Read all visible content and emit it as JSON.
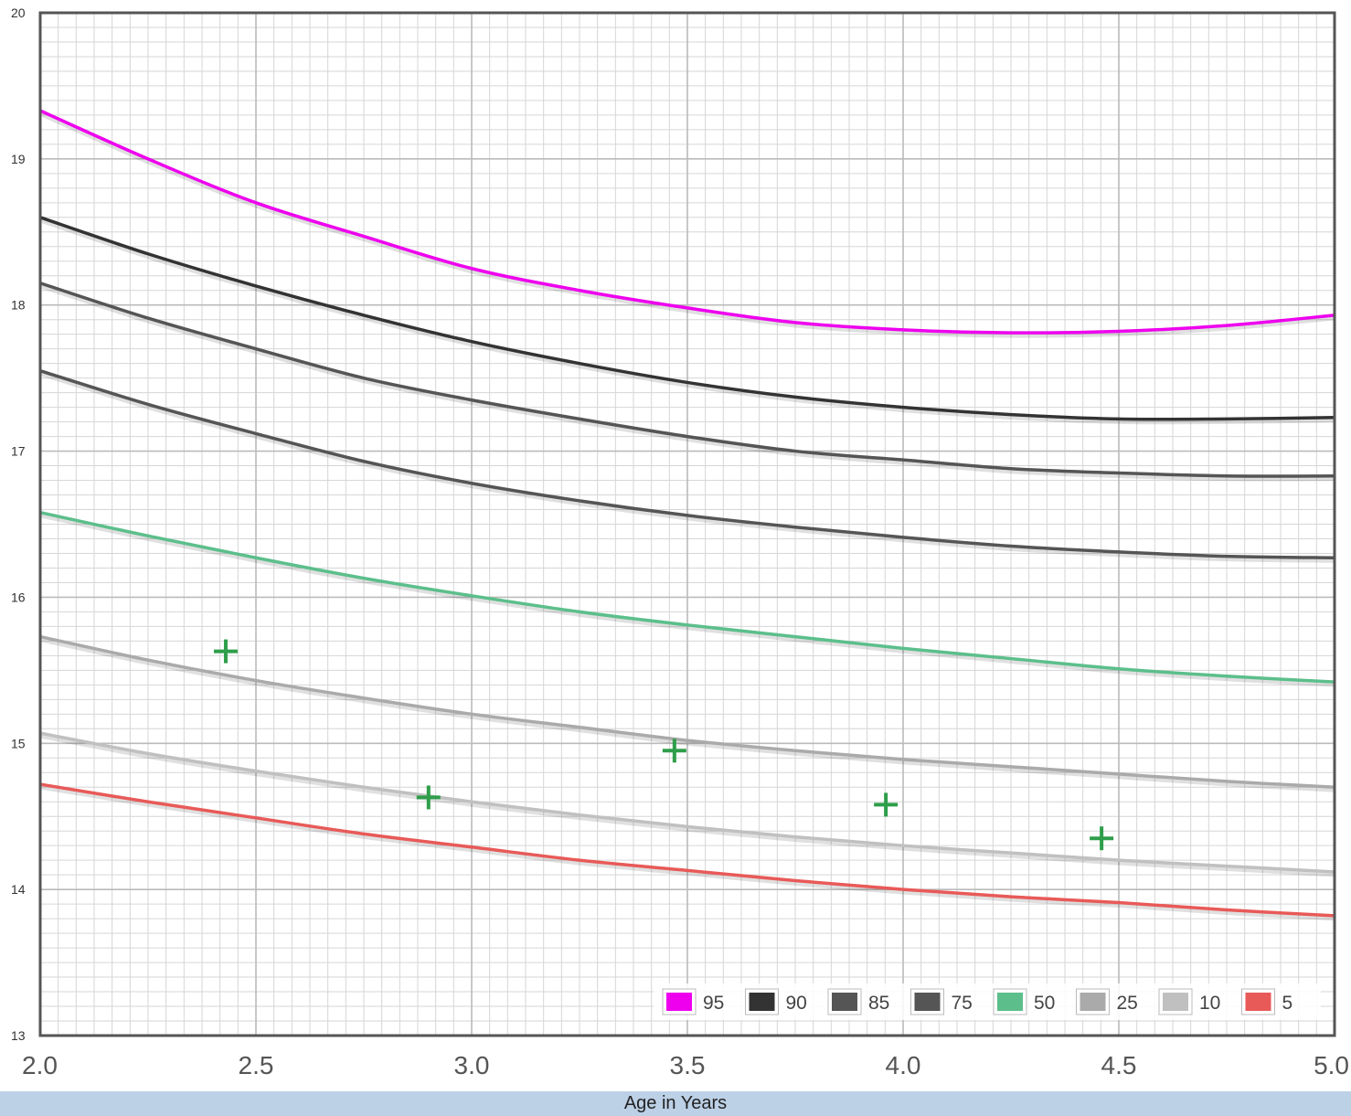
{
  "chart_data": {
    "type": "line",
    "title": "",
    "xlabel": "Age in Years",
    "ylabel": "",
    "xlim": [
      2.0,
      5.0
    ],
    "ylim": [
      13,
      20
    ],
    "x_ticks": [
      "2.0",
      "2.5",
      "3.0",
      "3.5",
      "4.0",
      "4.5",
      "5.0"
    ],
    "y_ticks": [
      "13",
      "14",
      "15",
      "16",
      "17",
      "18",
      "19",
      "20"
    ],
    "grid": true,
    "legend_position": "bottom-right",
    "x": [
      2.0,
      2.25,
      2.5,
      2.75,
      3.0,
      3.25,
      3.5,
      3.75,
      4.0,
      4.25,
      4.5,
      4.75,
      5.0
    ],
    "series": [
      {
        "name": "95",
        "color": "#ee00ee",
        "values": [
          19.33,
          19.0,
          18.7,
          18.47,
          18.25,
          18.1,
          17.98,
          17.88,
          17.83,
          17.81,
          17.82,
          17.86,
          17.93
        ]
      },
      {
        "name": "90",
        "color": "#333333",
        "values": [
          18.6,
          18.35,
          18.13,
          17.93,
          17.75,
          17.6,
          17.47,
          17.37,
          17.3,
          17.25,
          17.22,
          17.22,
          17.23
        ]
      },
      {
        "name": "85",
        "color": "#555555",
        "values": [
          18.15,
          17.91,
          17.7,
          17.5,
          17.35,
          17.22,
          17.1,
          17.0,
          16.94,
          16.88,
          16.85,
          16.83,
          16.83
        ]
      },
      {
        "name": "75",
        "color": "#555555",
        "values": [
          17.55,
          17.32,
          17.12,
          16.93,
          16.78,
          16.66,
          16.56,
          16.48,
          16.41,
          16.35,
          16.31,
          16.28,
          16.27
        ]
      },
      {
        "name": "50",
        "color": "#5cbf8b",
        "values": [
          16.58,
          16.42,
          16.27,
          16.13,
          16.01,
          15.9,
          15.81,
          15.73,
          15.65,
          15.58,
          15.51,
          15.46,
          15.42
        ]
      },
      {
        "name": "25",
        "color": "#aaaaaa",
        "values": [
          15.73,
          15.57,
          15.43,
          15.31,
          15.2,
          15.11,
          15.02,
          14.95,
          14.89,
          14.84,
          14.79,
          14.74,
          14.7
        ]
      },
      {
        "name": "10",
        "color": "#c0c0c0",
        "values": [
          15.07,
          14.93,
          14.81,
          14.7,
          14.6,
          14.51,
          14.43,
          14.36,
          14.3,
          14.25,
          14.2,
          14.16,
          14.12
        ]
      },
      {
        "name": "5",
        "color": "#e85a58",
        "values": [
          14.72,
          14.6,
          14.49,
          14.38,
          14.29,
          14.2,
          14.13,
          14.06,
          14.0,
          13.95,
          13.91,
          13.86,
          13.82
        ]
      }
    ],
    "points": [
      {
        "x": 2.43,
        "y": 15.63
      },
      {
        "x": 2.9,
        "y": 14.63
      },
      {
        "x": 3.47,
        "y": 14.95
      },
      {
        "x": 3.96,
        "y": 14.58
      },
      {
        "x": 4.46,
        "y": 14.35
      }
    ],
    "point_color": "#2e9e4a"
  }
}
